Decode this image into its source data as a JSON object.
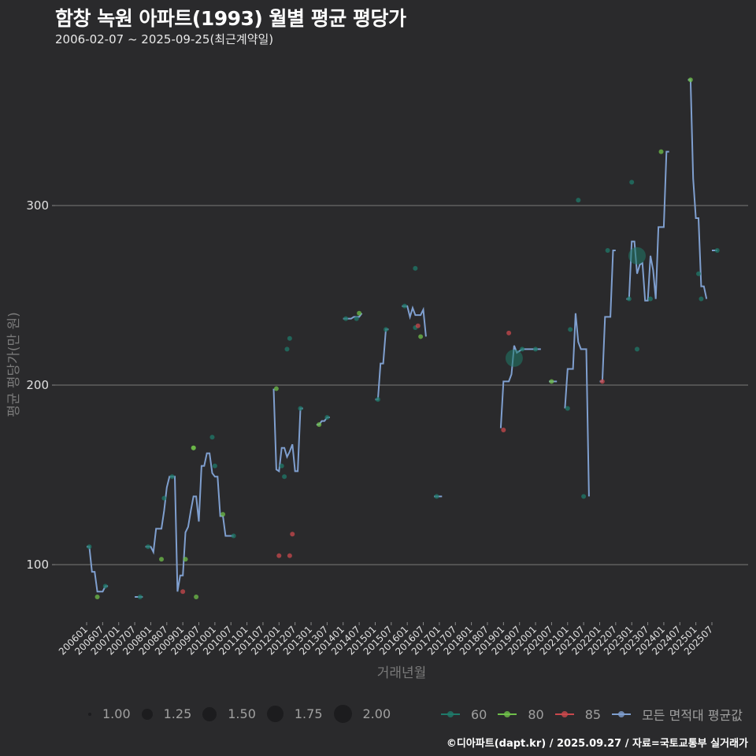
{
  "header": {
    "title": "함창 녹원 아파트(1993) 월별 평균 평당가",
    "subtitle": "2006-02-07 ~ 2025-09-25(최근계약일)"
  },
  "caption": "©디아파트(dapt.kr) / 2025.09.27 / 자료=국토교통부 실거래가",
  "legend": {
    "size": [
      {
        "label": "1.00",
        "r": 2
      },
      {
        "label": "1.25",
        "r": 6
      },
      {
        "label": "1.50",
        "r": 8
      },
      {
        "label": "1.75",
        "r": 10
      },
      {
        "label": "2.00",
        "r": 12
      }
    ],
    "series": [
      {
        "label": "60",
        "color": "#1f7a6a"
      },
      {
        "label": "80",
        "color": "#6fbf4a"
      },
      {
        "label": "85",
        "color": "#c9484c"
      },
      {
        "label": "모든 면적대 평균값",
        "color": "#7f9fcf"
      }
    ]
  },
  "chart_data": {
    "type": "line",
    "title": "함창 녹원 아파트(1993) 월별 평균 평당가",
    "subtitle": "2006-02-07 ~ 2025-09-25(최근계약일)",
    "xlabel": "거래년월",
    "ylabel": "평균 평당가(만 원)",
    "ylim": [
      60,
      375
    ],
    "yticks": [
      100,
      200,
      300
    ],
    "grid": true,
    "legend_position": "bottom",
    "x_ticks": [
      "200601",
      "200607",
      "200701",
      "200707",
      "200801",
      "200807",
      "200901",
      "200907",
      "201001",
      "201007",
      "201101",
      "201107",
      "201201",
      "201207",
      "201301",
      "201307",
      "201401",
      "201407",
      "201501",
      "201507",
      "201601",
      "201607",
      "201701",
      "201707",
      "201801",
      "201807",
      "201901",
      "201907",
      "202001",
      "202007",
      "202101",
      "202107",
      "202201",
      "202207",
      "202301",
      "202307",
      "202401",
      "202407",
      "202501",
      "202507"
    ],
    "series": [
      {
        "name": "모든 면적대 평균값",
        "color": "#7f9fcf",
        "segments": [
          [
            [
              0,
              110
            ],
            [
              1,
              110
            ],
            [
              2,
              96
            ],
            [
              3,
              96
            ],
            [
              4,
              85
            ],
            [
              5,
              85
            ],
            [
              6,
              85
            ],
            [
              7,
              88
            ],
            [
              8,
              88
            ]
          ],
          [
            [
              18,
              82
            ],
            [
              19,
              82
            ],
            [
              20,
              82
            ],
            [
              21,
              82
            ]
          ],
          [
            [
              22,
              110
            ],
            [
              23,
              110
            ],
            [
              24,
              110
            ],
            [
              25,
              107
            ],
            [
              26,
              120
            ],
            [
              27,
              120
            ],
            [
              28,
              120
            ],
            [
              29,
              130
            ],
            [
              30,
              143
            ],
            [
              31,
              149
            ],
            [
              32,
              149
            ],
            [
              33,
              149
            ],
            [
              34,
              85
            ],
            [
              35,
              94
            ],
            [
              36,
              94
            ],
            [
              37,
              118
            ],
            [
              38,
              121
            ],
            [
              39,
              130
            ],
            [
              40,
              138
            ],
            [
              41,
              138
            ],
            [
              42,
              124
            ],
            [
              43,
              155
            ],
            [
              44,
              155
            ],
            [
              45,
              162
            ],
            [
              46,
              162
            ],
            [
              47,
              151
            ],
            [
              48,
              149
            ],
            [
              49,
              149
            ],
            [
              50,
              127
            ],
            [
              51,
              127
            ],
            [
              52,
              116
            ],
            [
              53,
              116
            ],
            [
              54,
              116
            ],
            [
              55,
              116
            ]
          ],
          [
            [
              70,
              198
            ],
            [
              71,
              153
            ],
            [
              72,
              152
            ],
            [
              73,
              165
            ],
            [
              74,
              165
            ],
            [
              75,
              160
            ],
            [
              76,
              163
            ],
            [
              77,
              167
            ],
            [
              78,
              152
            ],
            [
              79,
              152
            ],
            [
              80,
              187
            ],
            [
              81,
              187
            ]
          ],
          [
            [
              86,
              178
            ],
            [
              87,
              178
            ],
            [
              88,
              180
            ],
            [
              89,
              180
            ],
            [
              90,
              182
            ],
            [
              91,
              182
            ]
          ],
          [
            [
              96,
              237
            ],
            [
              97,
              237
            ],
            [
              98,
              237
            ],
            [
              99,
              237
            ],
            [
              100,
              238
            ],
            [
              101,
              238
            ],
            [
              102,
              238
            ],
            [
              103,
              240
            ]
          ],
          [
            [
              108,
              192
            ],
            [
              109,
              192
            ],
            [
              110,
              212
            ],
            [
              111,
              212
            ],
            [
              112,
              231
            ],
            [
              113,
              231
            ]
          ],
          [
            [
              118,
              244
            ],
            [
              119,
              244
            ],
            [
              120,
              244
            ],
            [
              121,
              238
            ],
            [
              122,
              243
            ],
            [
              123,
              239
            ],
            [
              124,
              239
            ],
            [
              125,
              239
            ],
            [
              126,
              242
            ],
            [
              127,
              227
            ]
          ],
          [
            [
              130,
              138
            ],
            [
              131,
              138
            ],
            [
              132,
              138
            ],
            [
              133,
              138
            ]
          ],
          [
            [
              155,
              176
            ],
            [
              156,
              202
            ],
            [
              157,
              202
            ],
            [
              158,
              202
            ],
            [
              159,
              206
            ],
            [
              160,
              222
            ],
            [
              161,
              218
            ],
            [
              162,
              219
            ],
            [
              163,
              220
            ],
            [
              164,
              220
            ],
            [
              165,
              220
            ],
            [
              166,
              220
            ],
            [
              167,
              220
            ],
            [
              168,
              220
            ],
            [
              169,
              220
            ],
            [
              170,
              220
            ]
          ],
          [
            [
              173,
              202
            ],
            [
              174,
              202
            ],
            [
              175,
              202
            ],
            [
              176,
              202
            ]
          ],
          [
            [
              179,
              187
            ],
            [
              180,
              209
            ],
            [
              181,
              209
            ],
            [
              182,
              209
            ],
            [
              183,
              240
            ],
            [
              184,
              224
            ],
            [
              185,
              220
            ],
            [
              186,
              220
            ],
            [
              187,
              220
            ],
            [
              188,
              138
            ]
          ],
          [
            [
              192,
              202
            ],
            [
              193,
              202
            ],
            [
              194,
              238
            ],
            [
              195,
              238
            ],
            [
              196,
              238
            ],
            [
              197,
              275
            ],
            [
              198,
              275
            ]
          ],
          [
            [
              202,
              248
            ],
            [
              203,
              248
            ],
            [
              204,
              280
            ],
            [
              205,
              280
            ],
            [
              206,
              262
            ],
            [
              207,
              267
            ],
            [
              208,
              268
            ],
            [
              209,
              247
            ],
            [
              210,
              247
            ],
            [
              211,
              272
            ],
            [
              212,
              264
            ],
            [
              213,
              248
            ],
            [
              214,
              288
            ],
            [
              215,
              288
            ],
            [
              216,
              288
            ],
            [
              217,
              330
            ],
            [
              218,
              330
            ]
          ],
          [
            [
              225,
              370
            ],
            [
              226,
              370
            ],
            [
              227,
              315
            ],
            [
              228,
              293
            ],
            [
              229,
              293
            ],
            [
              230,
              255
            ],
            [
              231,
              255
            ],
            [
              232,
              248
            ]
          ],
          [
            [
              234,
              275
            ],
            [
              235,
              275
            ],
            [
              236,
              275
            ]
          ]
        ]
      }
    ],
    "points": [
      {
        "series": "60",
        "m": 1,
        "v": 110,
        "size": 1
      },
      {
        "series": "80",
        "m": 4,
        "v": 82,
        "size": 1
      },
      {
        "series": "60",
        "m": 7,
        "v": 88,
        "size": 1
      },
      {
        "series": "60",
        "m": 20,
        "v": 82,
        "size": 1
      },
      {
        "series": "60",
        "m": 23,
        "v": 110,
        "size": 1
      },
      {
        "series": "80",
        "m": 28,
        "v": 103,
        "size": 1
      },
      {
        "series": "60",
        "m": 29,
        "v": 137,
        "size": 1
      },
      {
        "series": "60",
        "m": 32,
        "v": 149,
        "size": 1
      },
      {
        "series": "85",
        "m": 36,
        "v": 85,
        "size": 1
      },
      {
        "series": "80",
        "m": 37,
        "v": 103,
        "size": 1
      },
      {
        "series": "80",
        "m": 40,
        "v": 165,
        "size": 1
      },
      {
        "series": "80",
        "m": 40,
        "v": 165,
        "size": 1
      },
      {
        "series": "80",
        "m": 41,
        "v": 82,
        "size": 1
      },
      {
        "series": "60",
        "m": 47,
        "v": 171,
        "size": 1
      },
      {
        "series": "60",
        "m": 48,
        "v": 155,
        "size": 1
      },
      {
        "series": "80",
        "m": 51,
        "v": 128,
        "size": 1
      },
      {
        "series": "60",
        "m": 55,
        "v": 116,
        "size": 1
      },
      {
        "series": "80",
        "m": 71,
        "v": 198,
        "size": 1
      },
      {
        "series": "85",
        "m": 72,
        "v": 105,
        "size": 1
      },
      {
        "series": "60",
        "m": 73,
        "v": 155,
        "size": 1
      },
      {
        "series": "60",
        "m": 74,
        "v": 149,
        "size": 1
      },
      {
        "series": "60",
        "m": 75,
        "v": 220,
        "size": 1
      },
      {
        "series": "60",
        "m": 76,
        "v": 226,
        "size": 1
      },
      {
        "series": "85",
        "m": 76,
        "v": 105,
        "size": 1
      },
      {
        "series": "85",
        "m": 77,
        "v": 117,
        "size": 1
      },
      {
        "series": "60",
        "m": 80,
        "v": 187,
        "size": 1
      },
      {
        "series": "80",
        "m": 87,
        "v": 178,
        "size": 1
      },
      {
        "series": "60",
        "m": 90,
        "v": 182,
        "size": 1
      },
      {
        "series": "60",
        "m": 97,
        "v": 237,
        "size": 1
      },
      {
        "series": "60",
        "m": 101,
        "v": 237,
        "size": 1
      },
      {
        "series": "80",
        "m": 102,
        "v": 240,
        "size": 1
      },
      {
        "series": "60",
        "m": 109,
        "v": 192,
        "size": 1
      },
      {
        "series": "60",
        "m": 112,
        "v": 231,
        "size": 1
      },
      {
        "series": "60",
        "m": 119,
        "v": 244,
        "size": 1
      },
      {
        "series": "60",
        "m": 123,
        "v": 265,
        "size": 1
      },
      {
        "series": "60",
        "m": 123,
        "v": 232,
        "size": 1
      },
      {
        "series": "85",
        "m": 124,
        "v": 233,
        "size": 1
      },
      {
        "series": "80",
        "m": 125,
        "v": 227,
        "size": 1
      },
      {
        "series": "60",
        "m": 131,
        "v": 138,
        "size": 1
      },
      {
        "series": "85",
        "m": 156,
        "v": 175,
        "size": 1
      },
      {
        "series": "85",
        "m": 158,
        "v": 229,
        "size": 1
      },
      {
        "series": "60",
        "m": 160,
        "v": 215,
        "size": 2
      },
      {
        "series": "60",
        "m": 163,
        "v": 220,
        "size": 1
      },
      {
        "series": "60",
        "m": 168,
        "v": 220,
        "size": 1
      },
      {
        "series": "80",
        "m": 174,
        "v": 202,
        "size": 1
      },
      {
        "series": "60",
        "m": 180,
        "v": 187,
        "size": 1
      },
      {
        "series": "60",
        "m": 181,
        "v": 231,
        "size": 1
      },
      {
        "series": "60",
        "m": 184,
        "v": 303,
        "size": 1
      },
      {
        "series": "60",
        "m": 186,
        "v": 138,
        "size": 1
      },
      {
        "series": "85",
        "m": 193,
        "v": 202,
        "size": 1
      },
      {
        "series": "60",
        "m": 195,
        "v": 275,
        "size": 1
      },
      {
        "series": "60",
        "m": 203,
        "v": 248,
        "size": 1
      },
      {
        "series": "60",
        "m": 204,
        "v": 313,
        "size": 1
      },
      {
        "series": "60",
        "m": 206,
        "v": 220,
        "size": 1
      },
      {
        "series": "60",
        "m": 206,
        "v": 272,
        "size": 2
      },
      {
        "series": "60",
        "m": 211,
        "v": 248,
        "size": 1
      },
      {
        "series": "80",
        "m": 215,
        "v": 330,
        "size": 1
      },
      {
        "series": "80",
        "m": 226,
        "v": 370,
        "size": 1
      },
      {
        "series": "60",
        "m": 229,
        "v": 262,
        "size": 1
      },
      {
        "series": "60",
        "m": 230,
        "v": 248,
        "size": 1
      },
      {
        "series": "60",
        "m": 236,
        "v": 275,
        "size": 1
      }
    ]
  },
  "series_colors": {
    "60": "#1f7a6a",
    "80": "#6fbf4a",
    "85": "#c9484c"
  }
}
